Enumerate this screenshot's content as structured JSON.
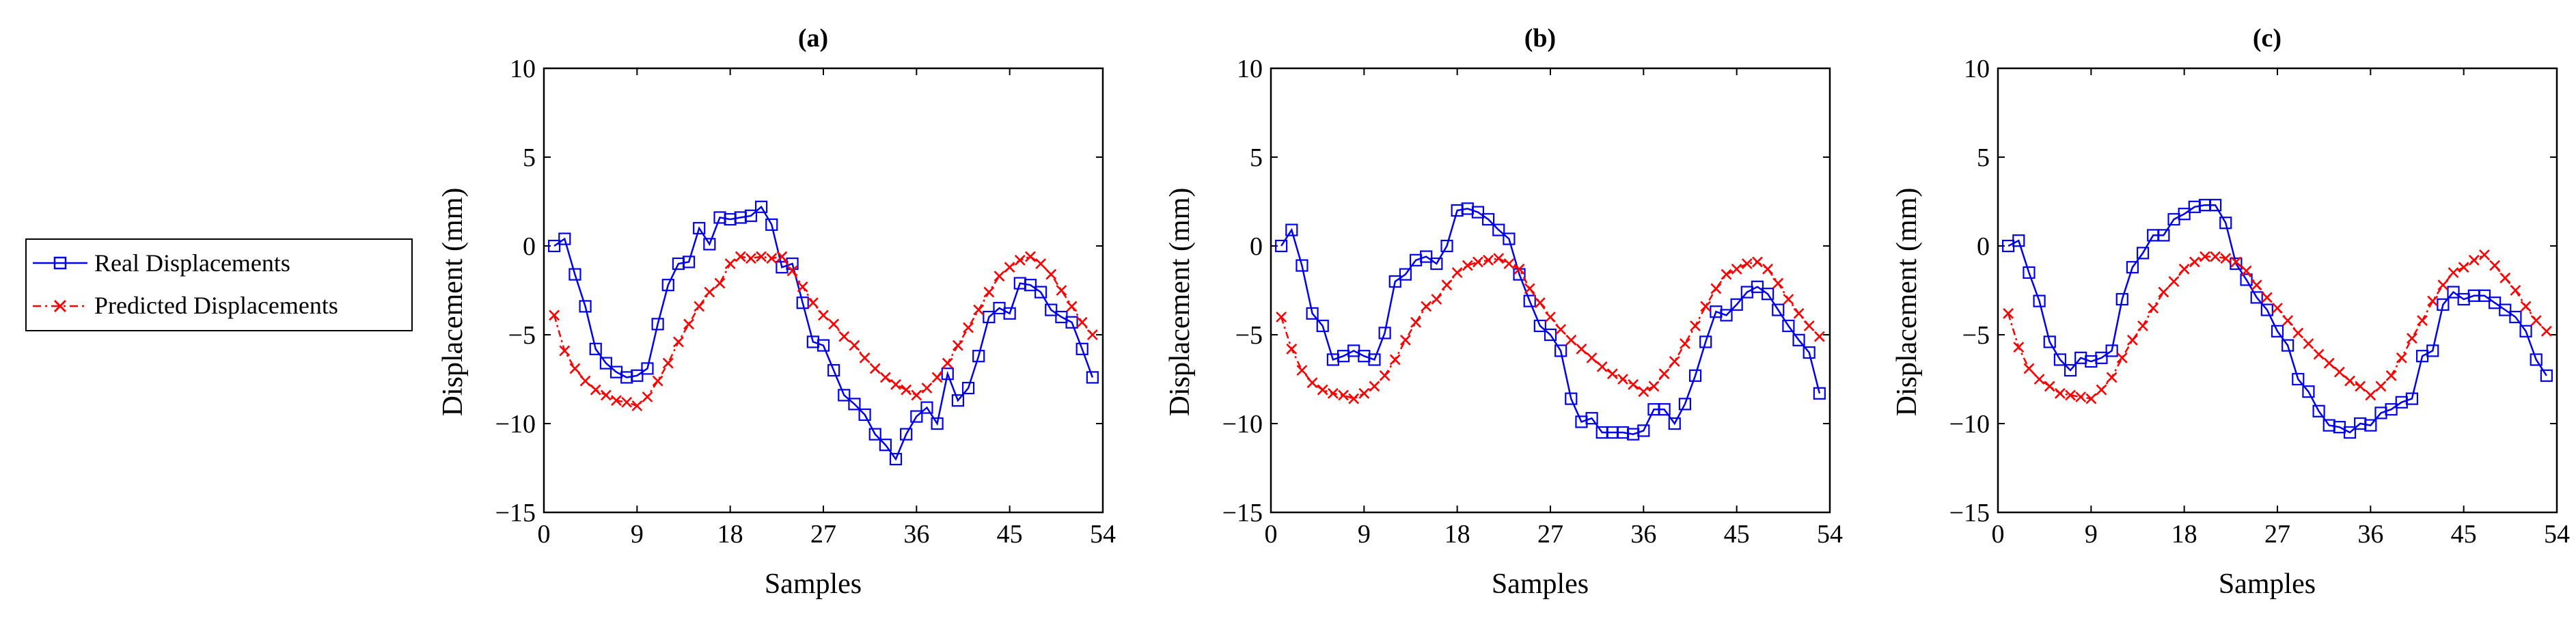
{
  "legend": {
    "real_label": "Real Displacements",
    "pred_label": "Predicted Displacements"
  },
  "colors": {
    "real": "#0000ee",
    "predicted": "#ff0000",
    "axis": "#000000"
  },
  "chart_data": [
    {
      "type": "line",
      "title": "(a)",
      "xlabel": "Samples",
      "ylabel": "Displacement (mm)",
      "xlim": [
        0,
        54
      ],
      "ylim": [
        -15,
        10
      ],
      "xticks": [
        0,
        9,
        18,
        27,
        36,
        45,
        54
      ],
      "yticks": [
        10,
        5,
        0,
        -5,
        -10,
        -15
      ],
      "grid": false,
      "legend_position": "left-outside",
      "series": [
        {
          "name": "Real Displacements",
          "marker": "square",
          "x": [
            1,
            2,
            3,
            4,
            5,
            6,
            7,
            8,
            9,
            10,
            11,
            12,
            13,
            14,
            15,
            16,
            17,
            18,
            19,
            20,
            21,
            22,
            23,
            24,
            25,
            26,
            27,
            28,
            29,
            30,
            31,
            32,
            33,
            34,
            35,
            36,
            37,
            38,
            39,
            40,
            41,
            42,
            43,
            44,
            45,
            46,
            47,
            48,
            49,
            50,
            51,
            52,
            53
          ],
          "values": [
            0,
            0.4,
            -1.6,
            -3.4,
            -5.8,
            -6.6,
            -7.1,
            -7.4,
            -7.3,
            -6.9,
            -4.4,
            -2.2,
            -1.0,
            -0.9,
            1.0,
            0.1,
            1.6,
            1.5,
            1.6,
            1.7,
            2.2,
            1.2,
            -1.2,
            -1.0,
            -3.2,
            -5.4,
            -5.6,
            -7.0,
            -8.4,
            -8.9,
            -9.5,
            -10.6,
            -11.2,
            -12.0,
            -10.6,
            -9.6,
            -9.1,
            -10.0,
            -7.2,
            -8.7,
            -8.0,
            -6.2,
            -4.0,
            -3.5,
            -3.8,
            -2.1,
            -2.2,
            -2.6,
            -3.6,
            -4.0,
            -4.3,
            -5.8,
            -7.4
          ]
        },
        {
          "name": "Predicted Displacements",
          "marker": "x",
          "x": [
            1,
            2,
            3,
            4,
            5,
            6,
            7,
            8,
            9,
            10,
            11,
            12,
            13,
            14,
            15,
            16,
            17,
            18,
            19,
            20,
            21,
            22,
            23,
            24,
            25,
            26,
            27,
            28,
            29,
            30,
            31,
            32,
            33,
            34,
            35,
            36,
            37,
            38,
            39,
            40,
            41,
            42,
            43,
            44,
            45,
            46,
            47,
            48,
            49,
            50,
            51,
            52,
            53
          ],
          "values": [
            -3.9,
            -5.9,
            -6.9,
            -7.6,
            -8.1,
            -8.4,
            -8.7,
            -8.8,
            -9.0,
            -8.5,
            -7.6,
            -6.6,
            -5.4,
            -4.4,
            -3.4,
            -2.6,
            -2.1,
            -1.0,
            -0.6,
            -0.7,
            -0.6,
            -0.7,
            -0.6,
            -1.4,
            -2.3,
            -3.2,
            -3.9,
            -4.4,
            -5.1,
            -5.6,
            -6.3,
            -6.9,
            -7.4,
            -7.8,
            -8.1,
            -8.4,
            -8.0,
            -7.4,
            -6.6,
            -5.6,
            -4.6,
            -3.6,
            -2.6,
            -1.7,
            -1.2,
            -0.8,
            -0.6,
            -1.0,
            -1.6,
            -2.5,
            -3.4,
            -4.3,
            -5.0
          ]
        }
      ]
    },
    {
      "type": "line",
      "title": "(b)",
      "xlabel": "Samples",
      "ylabel": "Displacement (mm)",
      "xlim": [
        0,
        54
      ],
      "ylim": [
        -15,
        10
      ],
      "xticks": [
        0,
        9,
        18,
        27,
        36,
        45,
        54
      ],
      "yticks": [
        10,
        5,
        0,
        -5,
        -10,
        -15
      ],
      "grid": false,
      "series": [
        {
          "name": "Real Displacements",
          "marker": "square",
          "x": [
            1,
            2,
            3,
            4,
            5,
            6,
            7,
            8,
            9,
            10,
            11,
            12,
            13,
            14,
            15,
            16,
            17,
            18,
            19,
            20,
            21,
            22,
            23,
            24,
            25,
            26,
            27,
            28,
            29,
            30,
            31,
            32,
            33,
            34,
            35,
            36,
            37,
            38,
            39,
            40,
            41,
            42,
            43,
            44,
            45,
            46,
            47,
            48,
            49,
            50,
            51,
            52,
            53
          ],
          "values": [
            0,
            0.9,
            -1.1,
            -3.8,
            -4.5,
            -6.4,
            -6.2,
            -5.9,
            -6.2,
            -6.4,
            -4.9,
            -2.0,
            -1.6,
            -0.8,
            -0.6,
            -1.0,
            0.0,
            2.0,
            2.1,
            1.9,
            1.5,
            0.9,
            0.4,
            -1.6,
            -3.1,
            -4.5,
            -5.0,
            -5.9,
            -8.6,
            -9.9,
            -9.7,
            -10.5,
            -10.5,
            -10.5,
            -10.6,
            -10.4,
            -9.2,
            -9.2,
            -10.0,
            -8.9,
            -7.3,
            -5.4,
            -3.7,
            -3.9,
            -3.3,
            -2.6,
            -2.3,
            -2.7,
            -3.6,
            -4.5,
            -5.3,
            -6.0,
            -8.3
          ]
        },
        {
          "name": "Predicted Displacements",
          "marker": "x",
          "x": [
            1,
            2,
            3,
            4,
            5,
            6,
            7,
            8,
            9,
            10,
            11,
            12,
            13,
            14,
            15,
            16,
            17,
            18,
            19,
            20,
            21,
            22,
            23,
            24,
            25,
            26,
            27,
            28,
            29,
            30,
            31,
            32,
            33,
            34,
            35,
            36,
            37,
            38,
            39,
            40,
            41,
            42,
            43,
            44,
            45,
            46,
            47,
            48,
            49,
            50,
            51,
            52,
            53
          ],
          "values": [
            -4.0,
            -5.8,
            -7.0,
            -7.7,
            -8.1,
            -8.3,
            -8.4,
            -8.6,
            -8.3,
            -7.9,
            -7.3,
            -6.4,
            -5.3,
            -4.3,
            -3.4,
            -3.0,
            -2.2,
            -1.5,
            -1.1,
            -0.9,
            -0.8,
            -0.7,
            -1.0,
            -1.3,
            -2.4,
            -3.2,
            -4.0,
            -4.7,
            -5.3,
            -5.8,
            -6.3,
            -6.8,
            -7.2,
            -7.5,
            -7.8,
            -8.2,
            -7.9,
            -7.2,
            -6.5,
            -5.5,
            -4.5,
            -3.4,
            -2.4,
            -1.6,
            -1.3,
            -1.0,
            -0.9,
            -1.3,
            -2.1,
            -3.0,
            -3.8,
            -4.5,
            -5.1
          ]
        }
      ]
    },
    {
      "type": "line",
      "title": "(c)",
      "xlabel": "Samples",
      "ylabel": "Displacement (mm)",
      "xlim": [
        0,
        54
      ],
      "ylim": [
        -15,
        10
      ],
      "xticks": [
        0,
        9,
        18,
        27,
        36,
        45,
        54
      ],
      "yticks": [
        10,
        5,
        0,
        -5,
        -10,
        -15
      ],
      "grid": false,
      "series": [
        {
          "name": "Real Displacements",
          "marker": "square",
          "x": [
            1,
            2,
            3,
            4,
            5,
            6,
            7,
            8,
            9,
            10,
            11,
            12,
            13,
            14,
            15,
            16,
            17,
            18,
            19,
            20,
            21,
            22,
            23,
            24,
            25,
            26,
            27,
            28,
            29,
            30,
            31,
            32,
            33,
            34,
            35,
            36,
            37,
            38,
            39,
            40,
            41,
            42,
            43,
            44,
            45,
            46,
            47,
            48,
            49,
            50,
            51,
            52,
            53
          ],
          "values": [
            0,
            0.3,
            -1.5,
            -3.1,
            -5.4,
            -6.4,
            -7.0,
            -6.3,
            -6.5,
            -6.3,
            -5.9,
            -3.0,
            -1.2,
            -0.4,
            0.6,
            0.6,
            1.5,
            1.8,
            2.2,
            2.3,
            2.3,
            1.3,
            -1.0,
            -1.9,
            -2.9,
            -3.6,
            -4.8,
            -5.6,
            -7.5,
            -8.2,
            -9.3,
            -10.1,
            -10.2,
            -10.5,
            -10.0,
            -10.1,
            -9.4,
            -9.2,
            -8.8,
            -8.6,
            -6.2,
            -5.9,
            -3.3,
            -2.6,
            -3.0,
            -2.8,
            -2.8,
            -3.2,
            -3.6,
            -4.0,
            -4.8,
            -6.4,
            -7.3
          ]
        },
        {
          "name": "Predicted Displacements",
          "marker": "x",
          "x": [
            1,
            2,
            3,
            4,
            5,
            6,
            7,
            8,
            9,
            10,
            11,
            12,
            13,
            14,
            15,
            16,
            17,
            18,
            19,
            20,
            21,
            22,
            23,
            24,
            25,
            26,
            27,
            28,
            29,
            30,
            31,
            32,
            33,
            34,
            35,
            36,
            37,
            38,
            39,
            40,
            41,
            42,
            43,
            44,
            45,
            46,
            47,
            48,
            49,
            50,
            51,
            52,
            53
          ],
          "values": [
            -3.8,
            -5.7,
            -6.9,
            -7.5,
            -7.9,
            -8.3,
            -8.4,
            -8.5,
            -8.6,
            -8.1,
            -7.4,
            -6.3,
            -5.3,
            -4.5,
            -3.5,
            -2.6,
            -2.0,
            -1.3,
            -0.9,
            -0.6,
            -0.6,
            -0.7,
            -0.9,
            -1.4,
            -2.2,
            -2.9,
            -3.5,
            -4.2,
            -4.9,
            -5.5,
            -6.1,
            -6.6,
            -7.1,
            -7.6,
            -7.9,
            -8.4,
            -7.9,
            -7.3,
            -6.3,
            -5.2,
            -4.2,
            -3.1,
            -2.2,
            -1.5,
            -1.2,
            -0.8,
            -0.5,
            -1.1,
            -1.8,
            -2.5,
            -3.4,
            -4.2,
            -4.8
          ]
        }
      ]
    }
  ]
}
